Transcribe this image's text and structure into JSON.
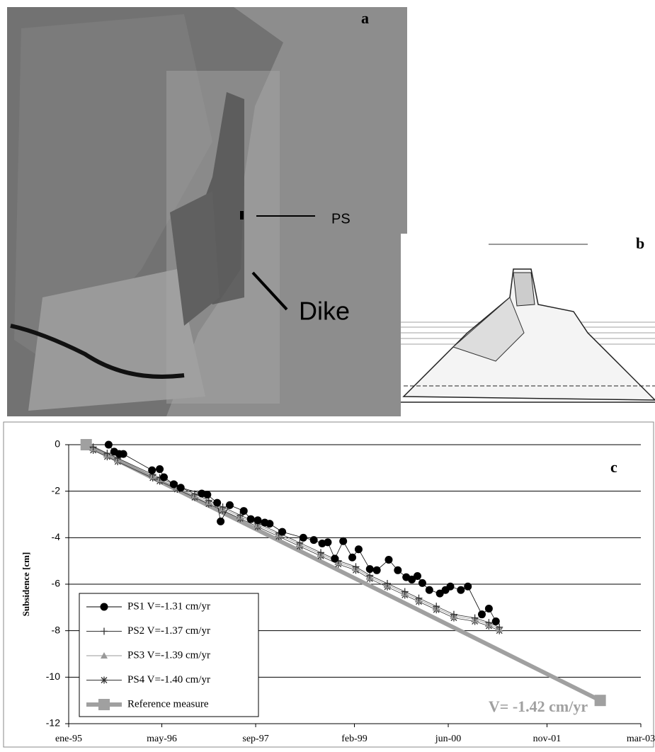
{
  "panels": {
    "a": {
      "label": "a",
      "ps": "PS",
      "dike": "Dike"
    },
    "b": {
      "label": "b"
    }
  },
  "chart_data": {
    "type": "scatter",
    "panel_label": "c",
    "ylabel": "Subsidence [cm]",
    "annotation": "V= -1.42 cm/yr",
    "xlim": [
      1995.0,
      2003.17
    ],
    "ylim": [
      -12,
      0
    ],
    "xticks": [
      {
        "value": 1995.0,
        "label": "ene-95"
      },
      {
        "value": 1996.33,
        "label": "may-96"
      },
      {
        "value": 1997.67,
        "label": "sep-97"
      },
      {
        "value": 1999.08,
        "label": "feb-99"
      },
      {
        "value": 2000.42,
        "label": "jun-00"
      },
      {
        "value": 2001.83,
        "label": "nov-01"
      },
      {
        "value": 2003.17,
        "label": "mar-03"
      }
    ],
    "yticks": [
      0,
      -2,
      -4,
      -6,
      -8,
      -10,
      -12
    ],
    "grid": true,
    "legend": "lower left",
    "series": [
      {
        "name": "PS1  V=-1.31 cm/yr",
        "color": "#000000",
        "marker": "circle",
        "x": [
          1995.57,
          1995.65,
          1995.72,
          1995.78,
          1996.19,
          1996.3,
          1996.36,
          1996.5,
          1996.6,
          1996.9,
          1996.98,
          1997.12,
          1997.17,
          1997.3,
          1997.5,
          1997.6,
          1997.7,
          1997.8,
          1997.87,
          1998.05,
          1998.35,
          1998.5,
          1998.62,
          1998.7,
          1998.8,
          1998.92,
          1999.05,
          1999.14,
          1999.3,
          1999.4,
          1999.57,
          1999.7,
          1999.82,
          1999.9,
          1999.98,
          2000.05,
          2000.15,
          2000.3,
          2000.38,
          2000.45,
          2000.6,
          2000.7,
          2000.9,
          2001.0,
          2001.1
        ],
        "values": [
          0,
          -0.3,
          -0.4,
          -0.4,
          -1.1,
          -1.05,
          -1.4,
          -1.7,
          -1.85,
          -2.1,
          -2.15,
          -2.5,
          -3.3,
          -2.6,
          -2.85,
          -3.2,
          -3.25,
          -3.35,
          -3.4,
          -3.75,
          -4.0,
          -4.1,
          -4.25,
          -4.2,
          -4.9,
          -4.15,
          -4.85,
          -4.5,
          -5.35,
          -5.4,
          -4.95,
          -5.4,
          -5.7,
          -5.8,
          -5.65,
          -5.95,
          -6.25,
          -6.4,
          -6.25,
          -6.1,
          -6.25,
          -6.1,
          -7.3,
          -7.05,
          -7.6
        ]
      },
      {
        "name": "PS2  V=-1.37 cm/yr",
        "color": "#333333",
        "marker": "plus",
        "x": [
          1995.35,
          1995.55,
          1995.7,
          1996.2,
          1996.3,
          1996.55,
          1996.8,
          1997.0,
          1997.2,
          1997.45,
          1997.7,
          1998.0,
          1998.3,
          1998.6,
          1998.85,
          1999.1,
          1999.3,
          1999.55,
          1999.8,
          2000.0,
          2000.25,
          2000.5,
          2000.8,
          2001.0,
          2001.15
        ],
        "values": [
          -0.1,
          -0.37,
          -0.58,
          -1.28,
          -1.42,
          -1.77,
          -2.12,
          -2.4,
          -2.68,
          -3.03,
          -3.38,
          -3.8,
          -4.22,
          -4.64,
          -4.99,
          -5.25,
          -5.62,
          -5.97,
          -6.32,
          -6.6,
          -6.95,
          -7.3,
          -7.45,
          -7.65,
          -7.85
        ]
      },
      {
        "name": "PS3  V=-1.39 cm/yr",
        "color": "#999999",
        "marker": "triangle",
        "x": [
          1995.35,
          1995.55,
          1995.7,
          1996.2,
          1996.3,
          1996.55,
          1996.8,
          1997.0,
          1997.2,
          1997.45,
          1997.7,
          1998.0,
          1998.3,
          1998.6,
          1998.85,
          1999.1,
          1999.3,
          1999.55,
          1999.8,
          2000.0,
          2000.25,
          2000.5,
          2000.8,
          2001.0,
          2001.15
        ],
        "values": [
          -0.16,
          -0.44,
          -0.65,
          -1.35,
          -1.49,
          -1.84,
          -2.19,
          -2.47,
          -2.75,
          -3.1,
          -3.45,
          -3.87,
          -4.29,
          -4.71,
          -5.06,
          -5.32,
          -5.69,
          -6.04,
          -6.39,
          -6.67,
          -7.02,
          -7.37,
          -7.52,
          -7.72,
          -7.92
        ]
      },
      {
        "name": "PS4  V=-1.40 cm/yr",
        "color": "#333333",
        "marker": "asterisk",
        "x": [
          1995.35,
          1995.55,
          1995.7,
          1996.2,
          1996.3,
          1996.55,
          1996.8,
          1997.0,
          1997.2,
          1997.45,
          1997.7,
          1998.0,
          1998.3,
          1998.6,
          1998.85,
          1999.1,
          1999.3,
          1999.55,
          1999.8,
          2000.0,
          2000.25,
          2000.5,
          2000.8,
          2001.0,
          2001.15
        ],
        "values": [
          -0.24,
          -0.52,
          -0.73,
          -1.43,
          -1.57,
          -1.92,
          -2.27,
          -2.55,
          -2.83,
          -3.18,
          -3.53,
          -3.95,
          -4.37,
          -4.79,
          -5.14,
          -5.4,
          -5.77,
          -6.12,
          -6.47,
          -6.75,
          -7.1,
          -7.45,
          -7.6,
          -7.8,
          -8.0
        ]
      },
      {
        "name": "Reference measure",
        "color": "#a0a0a0",
        "marker": "square",
        "x": [
          1995.25,
          2002.59
        ],
        "values": [
          0,
          -11
        ]
      }
    ]
  }
}
